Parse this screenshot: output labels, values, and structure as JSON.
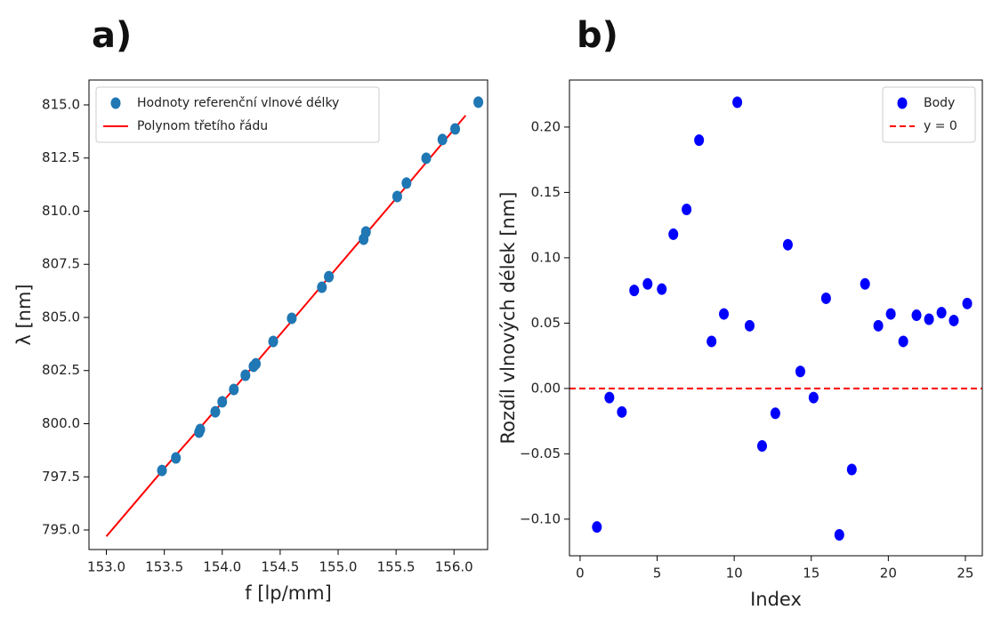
{
  "chart_data": [
    {
      "type": "scatter",
      "title": "a)",
      "xlabel": "f [lp/mm]",
      "ylabel": "λ [nm]",
      "xlim": [
        152.85,
        156.29
      ],
      "ylim": [
        794.08,
        816.17
      ],
      "xticks": [
        {
          "value": 153,
          "label": "153.0"
        },
        153.5,
        {
          "value": 154,
          "label": "154.0"
        },
        154.5,
        {
          "value": 155,
          "label": "155.0"
        },
        155.5,
        {
          "value": 156,
          "label": "156.0"
        }
      ],
      "yticks": [
        {
          "value": 795,
          "label": "795.0"
        },
        797.5,
        {
          "value": 800,
          "label": "800.0"
        },
        802.5,
        {
          "value": 805,
          "label": "805.0"
        },
        807.5,
        {
          "value": 810,
          "label": "810.0"
        },
        812.5,
        {
          "value": 815,
          "label": "815.0"
        }
      ],
      "grid": false,
      "legend": "upper left",
      "series": [
        {
          "name": "Hodnoty referenční vlnové délky",
          "type": "scatter",
          "color": "#1f77b4",
          "x": [
            153.48,
            153.6,
            153.8,
            153.81,
            153.94,
            154.0,
            154.1,
            154.2,
            154.27,
            154.29,
            154.44,
            154.6,
            154.86,
            154.92,
            155.22,
            155.24,
            155.51,
            155.59,
            155.76,
            155.9,
            156.01,
            156.21
          ],
          "values": [
            797.8,
            798.39,
            799.6,
            799.73,
            800.56,
            801.03,
            801.61,
            802.28,
            802.7,
            802.82,
            803.87,
            804.96,
            806.42,
            806.92,
            808.68,
            809.02,
            810.69,
            811.32,
            812.49,
            813.37,
            813.87,
            815.13
          ]
        },
        {
          "name": "Polynom třetího řádu",
          "type": "line",
          "color": "#ff0000",
          "x": [
            153.0,
            153.5,
            154.0,
            154.5,
            155.0,
            155.5,
            156.1
          ],
          "values": [
            794.7,
            797.9,
            801.0,
            804.2,
            807.4,
            810.6,
            814.5
          ]
        }
      ]
    },
    {
      "type": "scatter",
      "title": "b)",
      "xlabel": "Index",
      "ylabel": "Rozdíl vlnových délek [nm]",
      "xlim": [
        -0.69,
        26.1
      ],
      "ylim": [
        -0.128,
        0.236
      ],
      "xticks": [
        0,
        5,
        10,
        15,
        20,
        25
      ],
      "yticks": [
        {
          "value": -0.1,
          "label": "−0.10"
        },
        {
          "value": -0.05,
          "label": "−0.05"
        },
        {
          "value": 0,
          "label": "0.00"
        },
        0.05,
        {
          "value": 0.1,
          "label": "0.10"
        },
        0.15,
        {
          "value": 0.2,
          "label": "0.20"
        }
      ],
      "grid": false,
      "legend": "upper right",
      "series": [
        {
          "name": "Body",
          "type": "scatter",
          "color": "#0000ff",
          "x": [
            1.09,
            1.9,
            2.71,
            3.51,
            4.38,
            5.3,
            6.05,
            6.91,
            7.72,
            8.53,
            9.33,
            10.2,
            11.0,
            11.81,
            12.67,
            13.48,
            14.29,
            15.15,
            15.96,
            16.82,
            17.63,
            18.49,
            19.35,
            20.16,
            20.97,
            21.83,
            22.64,
            23.45,
            24.25,
            25.12
          ],
          "values": [
            -0.106,
            -0.007,
            -0.018,
            0.075,
            0.08,
            0.076,
            0.118,
            0.137,
            0.19,
            0.036,
            0.057,
            0.219,
            0.048,
            -0.044,
            -0.019,
            0.11,
            0.013,
            -0.007,
            0.069,
            -0.112,
            -0.062,
            0.08,
            0.048,
            0.057,
            0.036,
            0.056,
            0.053,
            0.058,
            0.052,
            0.065
          ]
        },
        {
          "name": "y = 0",
          "type": "hline",
          "color": "#ff0000",
          "values": [
            0
          ]
        }
      ]
    }
  ]
}
